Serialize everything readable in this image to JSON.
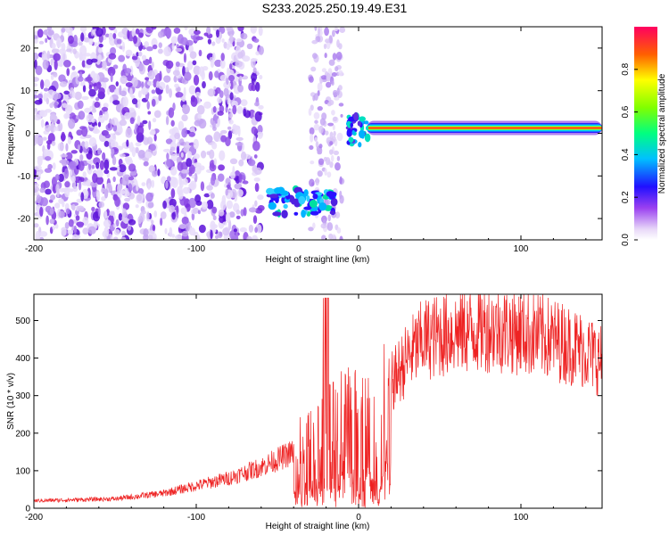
{
  "title": "S233.2025.250.19.49.E31",
  "colors": {
    "snr_line": "#ee2222",
    "axis": "#000000"
  },
  "chart_data": [
    {
      "type": "heatmap",
      "name": "spectrogram",
      "xlabel": "Height of straight line (km)",
      "ylabel": "Frequency (Hz)",
      "xlim": [
        -200,
        150
      ],
      "ylim": [
        -25,
        25
      ],
      "x_ticks": [
        -200,
        -100,
        0,
        100
      ],
      "y_ticks": [
        -20,
        -10,
        0,
        10,
        20
      ],
      "colorbar": {
        "label": "Normalized spectral amplitude",
        "range": [
          0,
          1
        ],
        "ticks": [
          "0.0",
          "0.2",
          "0.4",
          "0.6",
          "0.8"
        ],
        "tick_values": [
          0,
          0.2,
          0.4,
          0.6,
          0.8
        ]
      },
      "features": [
        {
          "label": "scattered low-amplitude noise",
          "x_range": [
            -200,
            -60
          ],
          "y_range": [
            -25,
            25
          ],
          "amplitude": 0.1
        },
        {
          "label": "echo trace",
          "x_range": [
            -55,
            -15
          ],
          "y_range": [
            -19,
            -13
          ],
          "amplitude": 0.35
        },
        {
          "label": "carrier line",
          "x_range": [
            5,
            150
          ],
          "y_range": [
            0.5,
            2
          ],
          "amplitude": 0.95
        }
      ]
    },
    {
      "type": "line",
      "name": "snr",
      "xlabel": "Height of straight line (km)",
      "ylabel": "SNR (10 * v/v)",
      "xlim": [
        -200,
        150
      ],
      "ylim": [
        0,
        570
      ],
      "x_ticks": [
        -200,
        -100,
        0,
        100
      ],
      "y_ticks": [
        0,
        100,
        200,
        300,
        400,
        500
      ],
      "envelope": {
        "x": [
          -200,
          -150,
          -120,
          -100,
          -80,
          -60,
          -40,
          -25,
          -10,
          0,
          10,
          20,
          30,
          40,
          60,
          80,
          100,
          120,
          140,
          150
        ],
        "y": [
          20,
          25,
          40,
          60,
          80,
          110,
          150,
          200,
          250,
          250,
          240,
          330,
          400,
          450,
          470,
          480,
          470,
          450,
          420,
          390
        ]
      }
    }
  ]
}
